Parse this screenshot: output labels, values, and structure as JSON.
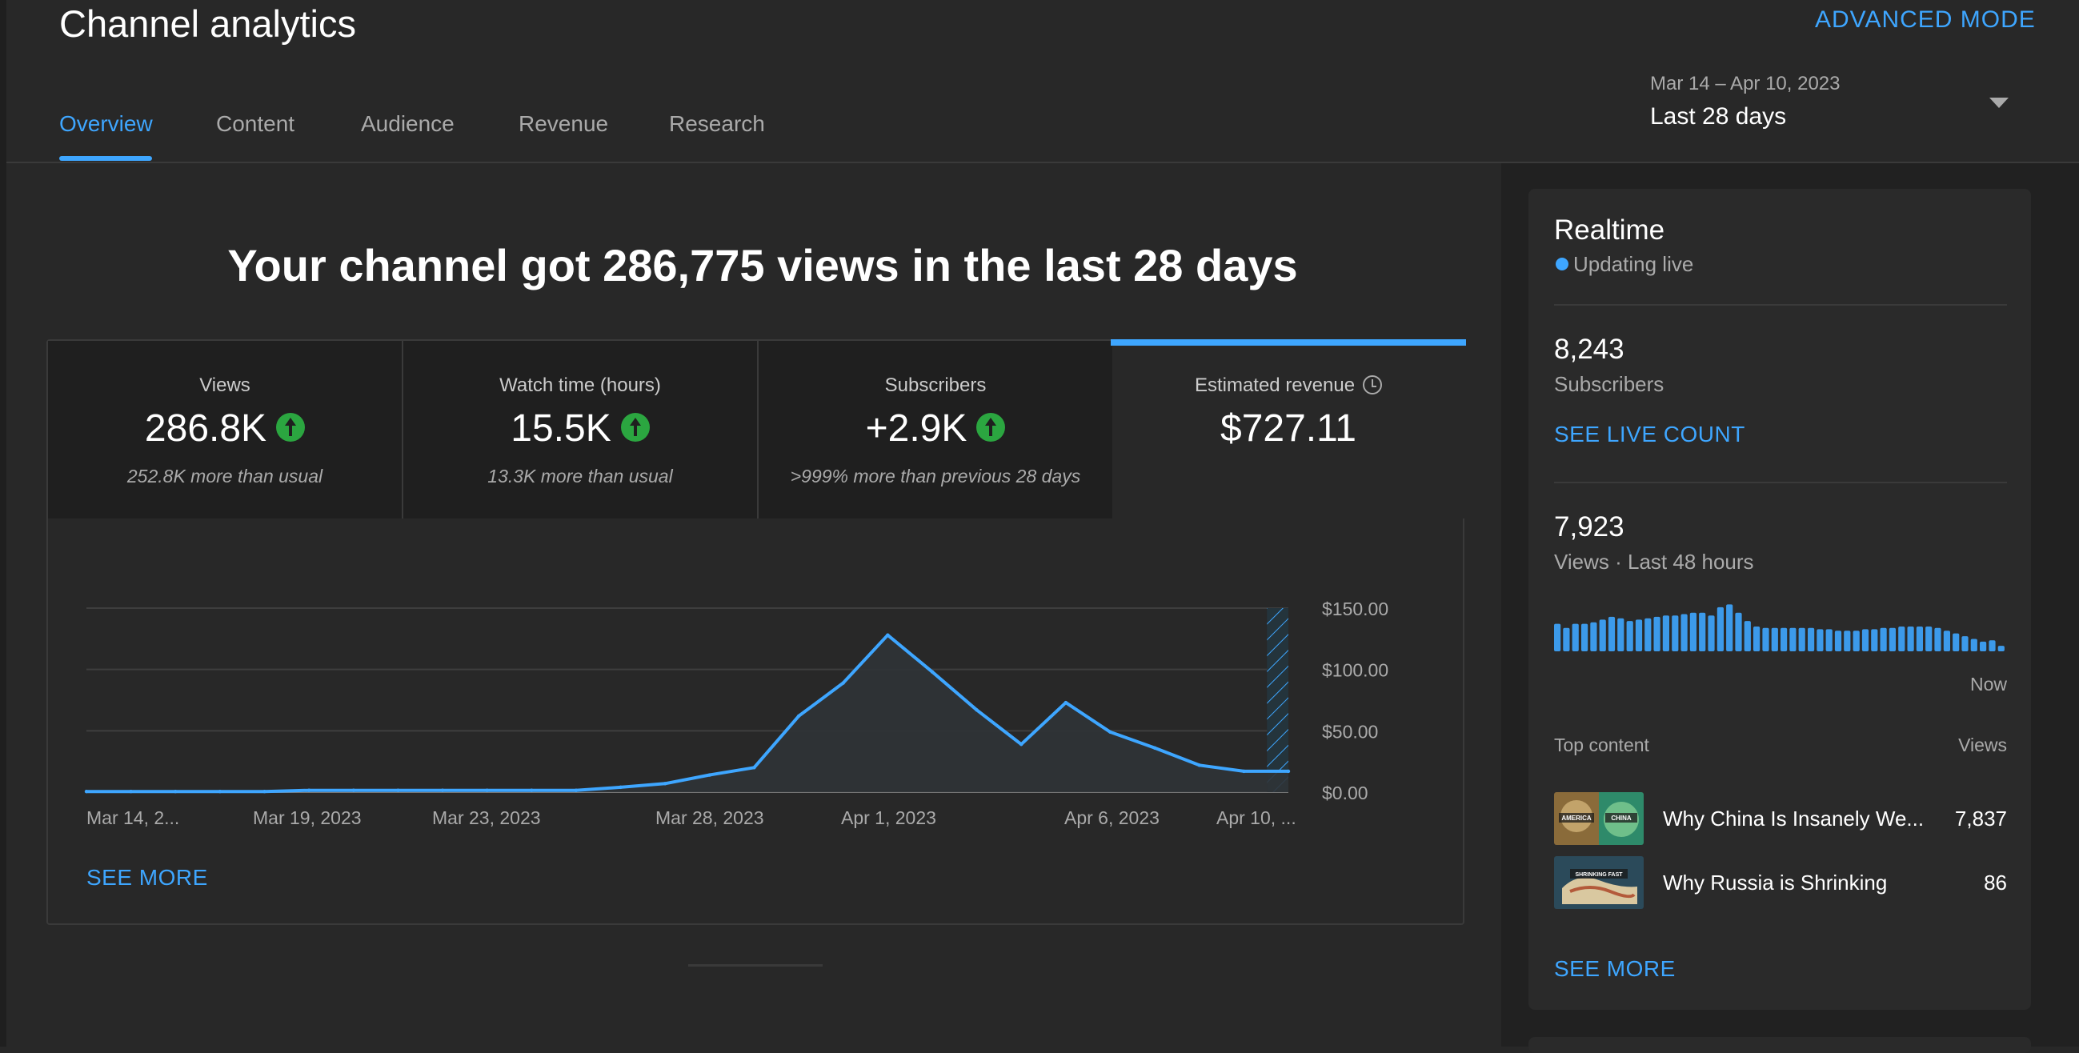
{
  "header": {
    "title": "Channel analytics",
    "advanced_mode": "ADVANCED MODE",
    "tabs": [
      {
        "label": "Overview",
        "active": true
      },
      {
        "label": "Content",
        "active": false
      },
      {
        "label": "Audience",
        "active": false
      },
      {
        "label": "Revenue",
        "active": false
      },
      {
        "label": "Research",
        "active": false
      }
    ],
    "date_picker": {
      "range": "Mar 14 – Apr 10, 2023",
      "label": "Last 28 days"
    }
  },
  "main": {
    "headline": "Your channel got 286,775 views in the last 28 days",
    "metrics": [
      {
        "label": "Views",
        "value": "286.8K",
        "trend": "up",
        "note": "252.8K more than usual"
      },
      {
        "label": "Watch time (hours)",
        "value": "15.5K",
        "trend": "up",
        "note": "13.3K more than usual"
      },
      {
        "label": "Subscribers",
        "value": "+2.9K",
        "trend": "up",
        "note": ">999% more than previous 28 days"
      },
      {
        "label": "Estimated revenue",
        "value": "$727.11",
        "selected": true
      }
    ],
    "see_more": "SEE MORE"
  },
  "chart_data": {
    "type": "area",
    "title": "",
    "xlabel": "",
    "ylabel": "",
    "x": [
      "Mar 14",
      "Mar 15",
      "Mar 16",
      "Mar 17",
      "Mar 18",
      "Mar 19",
      "Mar 20",
      "Mar 21",
      "Mar 22",
      "Mar 23",
      "Mar 24",
      "Mar 25",
      "Mar 26",
      "Mar 27",
      "Mar 28",
      "Mar 29",
      "Mar 30",
      "Mar 31",
      "Apr 1",
      "Apr 2",
      "Apr 3",
      "Apr 4",
      "Apr 5",
      "Apr 6",
      "Apr 7",
      "Apr 8",
      "Apr 9",
      "Apr 10"
    ],
    "values": [
      0.5,
      0.5,
      0.5,
      0.5,
      0.5,
      1.5,
      1.5,
      1.5,
      1.5,
      1.5,
      1.5,
      1.5,
      4,
      7,
      14,
      20,
      62,
      89,
      128,
      98,
      67,
      39,
      73,
      49,
      36,
      22,
      17,
      17
    ],
    "x_tick_labels": [
      "Mar 14, 2...",
      "Mar 19, 2023",
      "Mar 23, 2023",
      "Mar 28, 2023",
      "Apr 1, 2023",
      "Apr 6, 2023",
      "Apr 10, ..."
    ],
    "y_tick_labels": [
      "$150.00",
      "$100.00",
      "$50.00",
      "$0.00"
    ],
    "ylim": [
      0,
      150
    ],
    "y_axis_side": "right",
    "grid": true,
    "partial_period": "Apr 10",
    "colors": {
      "line": "#3ea6ff",
      "fill": "#2f3336",
      "hatch": "#3ea6ff"
    }
  },
  "realtime": {
    "title": "Realtime",
    "status": "Updating live",
    "subscribers_value": "8,243",
    "subscribers_label": "Subscribers",
    "see_live_count": "SEE LIVE COUNT",
    "views_value": "7,923",
    "views_label": "Views · Last 48 hours",
    "bars": [
      20,
      17,
      20,
      20,
      21,
      23,
      25,
      24,
      22,
      23,
      24,
      25,
      26,
      26,
      27,
      28,
      28,
      26,
      32,
      34,
      28,
      22,
      18,
      17,
      17,
      17,
      17,
      17,
      17,
      16,
      16,
      15,
      15,
      15,
      16,
      16,
      17,
      17,
      18,
      18,
      18,
      18,
      17,
      15,
      13,
      11,
      9,
      7,
      8,
      4
    ],
    "now_label": "Now",
    "top_content_label": "Top content",
    "views_header": "Views",
    "top_content": [
      {
        "title": "Why China Is Insanely We...",
        "views": "7,837",
        "thumb_text": [
          "AMERICA",
          "CHINA"
        ]
      },
      {
        "title": "Why Russia is Shrinking",
        "views": "86",
        "thumb_text": [
          "SHRINKING FAST"
        ]
      }
    ],
    "see_more": "SEE MORE"
  }
}
